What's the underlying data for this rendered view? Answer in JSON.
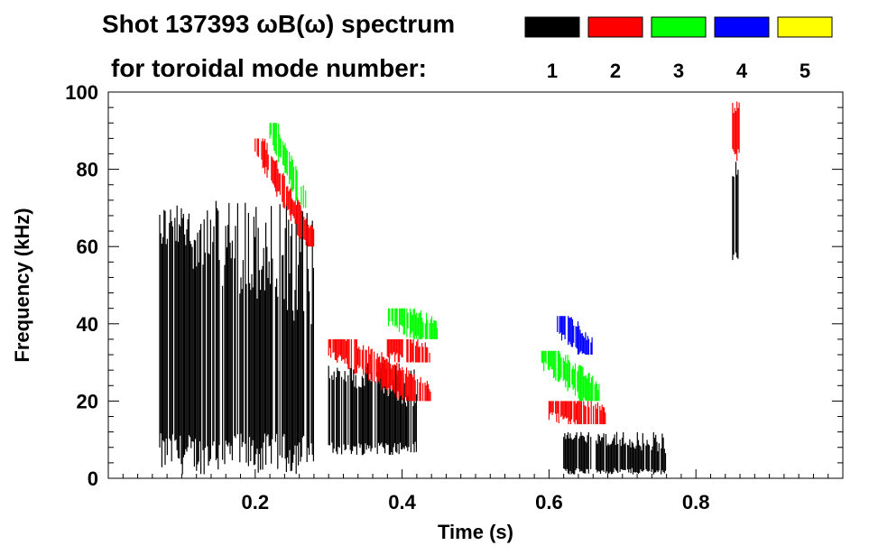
{
  "chart_data": {
    "type": "heatmap",
    "title_line1": "Shot 137393 ωB(ω) spectrum",
    "title_line2": "for toroidal mode number:",
    "xlabel": "Time (s)",
    "ylabel": "Frequency (kHz)",
    "xlim": [
      0.0,
      1.0
    ],
    "ylim": [
      0,
      100
    ],
    "x_ticks": [
      0.2,
      0.4,
      0.6,
      0.8
    ],
    "x_tick_labels": [
      "0.2",
      "0.4",
      "0.6",
      "0.8"
    ],
    "y_ticks": [
      0,
      20,
      40,
      60,
      80,
      100
    ],
    "y_tick_labels": [
      "0",
      "20",
      "40",
      "60",
      "80",
      "100"
    ],
    "legend": [
      {
        "label": "1",
        "color": "#000000"
      },
      {
        "label": "2",
        "color": "#ff0000"
      },
      {
        "label": "3",
        "color": "#00ff00"
      },
      {
        "label": "4",
        "color": "#0000ff"
      },
      {
        "label": "5",
        "color": "#ffff00"
      }
    ],
    "features": [
      {
        "mode": 1,
        "t": [
          0.07,
          0.28
        ],
        "f": [
          1,
          72
        ],
        "kind": "broadband"
      },
      {
        "mode": 2,
        "t": [
          0.2,
          0.28
        ],
        "f": [
          60,
          88
        ],
        "kind": "chirp"
      },
      {
        "mode": 3,
        "t": [
          0.22,
          0.27
        ],
        "f": [
          70,
          92
        ],
        "kind": "chirp"
      },
      {
        "mode": 1,
        "t": [
          0.3,
          0.42
        ],
        "f": [
          6,
          30
        ],
        "kind": "broadband"
      },
      {
        "mode": 2,
        "t": [
          0.3,
          0.44
        ],
        "f": [
          20,
          36
        ],
        "kind": "chirp"
      },
      {
        "mode": 2,
        "t": [
          0.38,
          0.44
        ],
        "f": [
          30,
          36
        ],
        "kind": "chirp"
      },
      {
        "mode": 3,
        "t": [
          0.38,
          0.45
        ],
        "f": [
          36,
          44
        ],
        "kind": "chirp"
      },
      {
        "mode": 1,
        "t": [
          0.62,
          0.76
        ],
        "f": [
          1,
          12
        ],
        "kind": "broadband"
      },
      {
        "mode": 2,
        "t": [
          0.6,
          0.68
        ],
        "f": [
          14,
          20
        ],
        "kind": "chirp"
      },
      {
        "mode": 3,
        "t": [
          0.59,
          0.67
        ],
        "f": [
          20,
          33
        ],
        "kind": "chirp"
      },
      {
        "mode": 4,
        "t": [
          0.61,
          0.66
        ],
        "f": [
          32,
          42
        ],
        "kind": "chirp"
      },
      {
        "mode": 1,
        "t": [
          0.85,
          0.86
        ],
        "f": [
          55,
          82
        ],
        "kind": "burst"
      },
      {
        "mode": 2,
        "t": [
          0.85,
          0.86
        ],
        "f": [
          82,
          98
        ],
        "kind": "burst"
      }
    ]
  }
}
